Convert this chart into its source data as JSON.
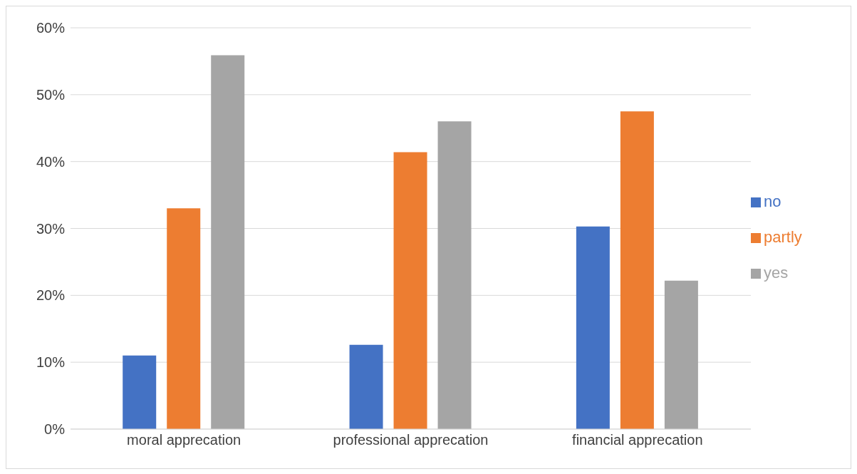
{
  "chart_data": {
    "type": "bar",
    "categories": [
      "moral apprecation",
      "professional apprecation",
      "financial apprecation"
    ],
    "series": [
      {
        "name": "no",
        "color": "#4472c4",
        "values": [
          11.0,
          12.6,
          30.3
        ]
      },
      {
        "name": "partly",
        "color": "#ed7d31",
        "values": [
          33.0,
          41.4,
          47.5
        ]
      },
      {
        "name": "yes",
        "color": "#a5a5a5",
        "values": [
          55.9,
          46.0,
          22.2
        ]
      }
    ],
    "ylim": [
      0,
      60
    ],
    "yticks": [
      {
        "value": 0,
        "label": "0%"
      },
      {
        "value": 10,
        "label": "10%"
      },
      {
        "value": 20,
        "label": "20%"
      },
      {
        "value": 30,
        "label": "30%"
      },
      {
        "value": 40,
        "label": "40%"
      },
      {
        "value": 50,
        "label": "50%"
      },
      {
        "value": 60,
        "label": "60%"
      }
    ],
    "grid": "y",
    "legend": "right"
  }
}
